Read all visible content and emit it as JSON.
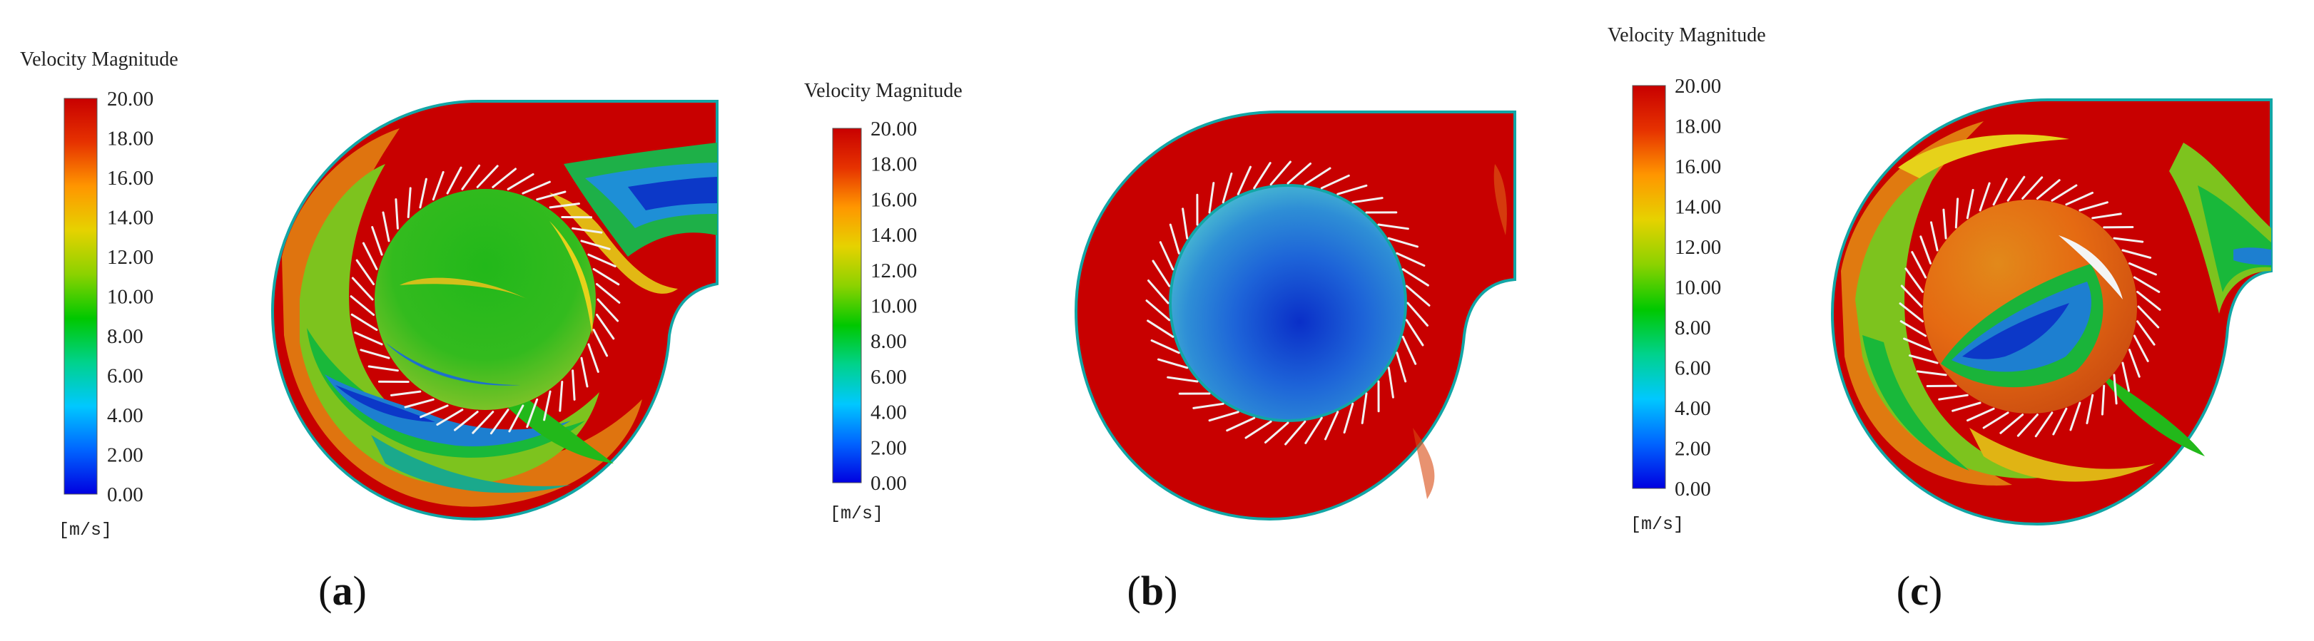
{
  "colors": {
    "scale": [
      "#0000e0",
      "#0064ff",
      "#00c8ff",
      "#00d28c",
      "#00c800",
      "#8cd200",
      "#e6d200",
      "#ff9600",
      "#e63200",
      "#c80000"
    ],
    "blade": "#f2f2f2",
    "casing_edge": "#12a6a6"
  },
  "panels": [
    {
      "id": "a",
      "caption_letter": "a",
      "legend": {
        "title": "Velocity Magnitude",
        "unit": "[m/s]",
        "ticks": [
          "20.00",
          "18.00",
          "16.00",
          "14.00",
          "12.00",
          "10.00",
          "8.00",
          "6.00",
          "4.00",
          "2.00",
          "0.00"
        ]
      }
    },
    {
      "id": "b",
      "caption_letter": "b",
      "legend": {
        "title": "Velocity Magnitude",
        "unit": "[m/s]",
        "ticks": [
          "20.00",
          "18.00",
          "16.00",
          "14.00",
          "12.00",
          "10.00",
          "8.00",
          "6.00",
          "4.00",
          "2.00",
          "0.00"
        ]
      }
    },
    {
      "id": "c",
      "caption_letter": "c",
      "legend": {
        "title": "Velocity Magnitude",
        "unit": "[m/s]",
        "ticks": [
          "20.00",
          "18.00",
          "16.00",
          "14.00",
          "12.00",
          "10.00",
          "8.00",
          "6.00",
          "4.00",
          "2.00",
          "0.00"
        ]
      }
    }
  ]
}
